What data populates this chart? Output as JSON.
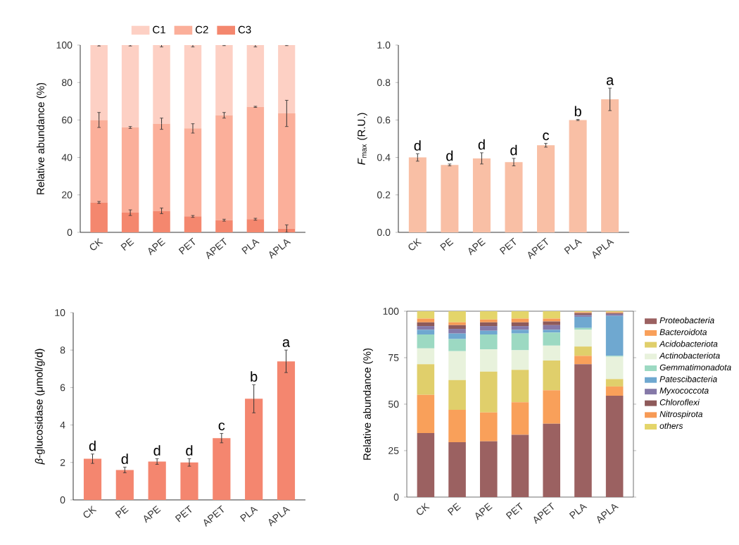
{
  "chart_data": [
    {
      "type": "bar",
      "stacked": true,
      "ylabel": "Relative abundance (%)",
      "categories": [
        "CK",
        "PE",
        "APE",
        "PET",
        "APET",
        "PLA",
        "APLA"
      ],
      "ylim": [
        0,
        100
      ],
      "yticks": [
        0,
        20,
        40,
        60,
        80,
        100
      ],
      "legend": "top",
      "series": [
        {
          "name": "C3",
          "color": "#f4876e",
          "values": [
            16,
            10.5,
            11.5,
            8.5,
            6.5,
            7,
            2
          ],
          "errors": [
            0.5,
            1.5,
            1.5,
            0.5,
            0.5,
            0.5,
            2
          ]
        },
        {
          "name": "C2",
          "color": "#fbaf9a",
          "values": [
            44,
            45.5,
            46.5,
            47,
            56,
            60,
            61.5
          ],
          "errors": [
            4,
            0.5,
            3,
            2.5,
            1.5,
            0.3,
            7
          ]
        },
        {
          "name": "C1",
          "color": "#fdd0c4",
          "values": [
            40,
            44,
            42,
            44.5,
            37.5,
            33,
            36.5
          ],
          "errors": [
            0.5,
            0.5,
            1,
            1,
            0.3,
            1,
            0.3
          ]
        }
      ]
    },
    {
      "type": "bar",
      "ylabel": "*F*$_{max}$ (R.U.)",
      "categories": [
        "CK",
        "PE",
        "APE",
        "PET",
        "APET",
        "PLA",
        "APLA"
      ],
      "ylim": [
        0,
        1.0
      ],
      "yticks": [
        {
          "value": 0,
          "label": "0.0"
        },
        0.2,
        0.4,
        0.6,
        0.8,
        {
          "value": 1.0,
          "label": "1.0"
        }
      ],
      "series": [
        {
          "color": "#f9bfa5",
          "values": [
            0.4,
            0.36,
            0.395,
            0.375,
            0.465,
            0.6,
            0.71
          ],
          "errors": [
            0.02,
            0.005,
            0.03,
            0.02,
            0.01,
            0.003,
            0.06
          ]
        }
      ],
      "annotations": [
        "d",
        "d",
        "d",
        "d",
        "c",
        "b",
        "a"
      ]
    },
    {
      "type": "bar",
      "ylabel": "*β*-glucosidase (μmol/g/d)",
      "categories": [
        "CK",
        "PE",
        "APE",
        "PET",
        "APET",
        "PLA",
        "APLA"
      ],
      "ylim": [
        0,
        10
      ],
      "yticks": [
        0,
        2,
        4,
        6,
        8,
        10
      ],
      "series": [
        {
          "color": "#f4866f",
          "values": [
            2.2,
            1.6,
            2.05,
            2.0,
            3.3,
            5.4,
            7.4
          ],
          "errors": [
            0.25,
            0.15,
            0.15,
            0.2,
            0.25,
            0.75,
            0.6
          ]
        }
      ],
      "annotations": [
        "d",
        "d",
        "d",
        "d",
        "c",
        "b",
        "a"
      ]
    },
    {
      "type": "bar",
      "stacked": true,
      "ylabel": "Relative abundance (%)",
      "categories": [
        "CK",
        "PE",
        "APE",
        "PET",
        "APET",
        "PLA",
        "APLA"
      ],
      "ylim": [
        0,
        100
      ],
      "yticks": [
        0,
        25,
        50,
        75,
        100
      ],
      "legend": "right",
      "series": [
        {
          "name": "Proteobacteria",
          "color": "#9b6161",
          "values": [
            34.5,
            29.5,
            30,
            33.5,
            39.5,
            71.5,
            54.5
          ]
        },
        {
          "name": "Bacteroidota",
          "color": "#f9a05a",
          "values": [
            20.5,
            17.5,
            15.5,
            17.5,
            18,
            4.5,
            5
          ]
        },
        {
          "name": "Acidobacteriota",
          "color": "#e0cf6b",
          "values": [
            16.5,
            16,
            22,
            17.5,
            16,
            5,
            4
          ]
        },
        {
          "name": "Actinobacteriota",
          "color": "#e8f2dc",
          "values": [
            8.5,
            15.5,
            12,
            10.5,
            8,
            9,
            12
          ]
        },
        {
          "name": "Gemmatimonadota",
          "color": "#9cd9c2",
          "values": [
            7.5,
            6.5,
            8,
            9,
            7,
            1,
            0.5
          ]
        },
        {
          "name": "Patescibacteria",
          "color": "#6fa8d0",
          "values": [
            2.5,
            3,
            2,
            2,
            1.5,
            6,
            21.5
          ]
        },
        {
          "name": "Myxococcota",
          "color": "#8579a8",
          "values": [
            2,
            2.5,
            2.5,
            2,
            2.5,
            1,
            1
          ]
        },
        {
          "name": "Chloroflexi",
          "color": "#8e5a5a",
          "values": [
            2,
            2,
            2,
            2,
            2,
            1,
            0.5
          ]
        },
        {
          "name": "Nitrospirota",
          "color": "#f79a55",
          "values": [
            2,
            1.5,
            1.5,
            2,
            1.5,
            0.5,
            0.5
          ]
        },
        {
          "name": "others",
          "color": "#e4d56a",
          "values": [
            4,
            6,
            4.5,
            4,
            4,
            0.5,
            0.5
          ]
        }
      ]
    }
  ]
}
